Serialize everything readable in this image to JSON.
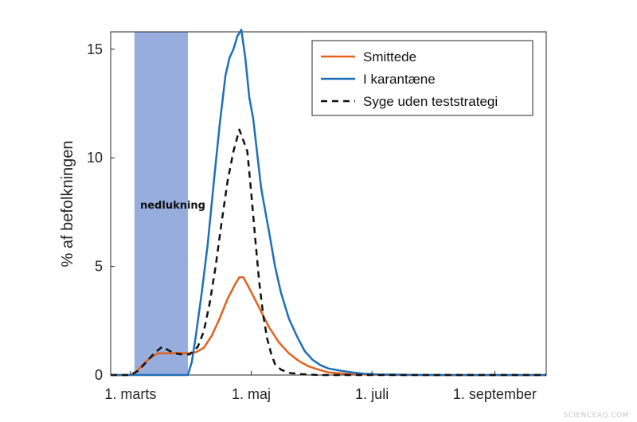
{
  "chart_data": {
    "type": "line",
    "ylabel": "% af befolkningen",
    "xlabel": "",
    "x_ticks": [
      "1. marts",
      "1. maj",
      "1. juli",
      "1. september"
    ],
    "x_tick_days": [
      0,
      61,
      122,
      184
    ],
    "y_ticks": [
      "0",
      "5",
      "10",
      "15"
    ],
    "y_tick_values": [
      0,
      5,
      10,
      15
    ],
    "xlim": [
      -10,
      210
    ],
    "ylim": [
      0,
      15.8
    ],
    "grid": false,
    "legend_position": "top-right",
    "shaded_region": {
      "label": "nedlukning",
      "x_range": [
        2,
        29
      ],
      "color": "#7f9bd6"
    },
    "series": [
      {
        "name": "Smittede",
        "color": "#e2621e",
        "style": "solid",
        "points": [
          [
            -10,
            0
          ],
          [
            0,
            0
          ],
          [
            3,
            0.15
          ],
          [
            6,
            0.45
          ],
          [
            10,
            0.8
          ],
          [
            14,
            1.0
          ],
          [
            20,
            1.0
          ],
          [
            25,
            1.02
          ],
          [
            29,
            1.0
          ],
          [
            33,
            1.05
          ],
          [
            37,
            1.25
          ],
          [
            41,
            1.8
          ],
          [
            45,
            2.6
          ],
          [
            49,
            3.5
          ],
          [
            53,
            4.2
          ],
          [
            55,
            4.5
          ],
          [
            57,
            4.5
          ],
          [
            60,
            4.0
          ],
          [
            65,
            3.1
          ],
          [
            70,
            2.2
          ],
          [
            75,
            1.5
          ],
          [
            80,
            1.0
          ],
          [
            85,
            0.65
          ],
          [
            90,
            0.4
          ],
          [
            95,
            0.25
          ],
          [
            100,
            0.12
          ],
          [
            110,
            0.05
          ],
          [
            120,
            0.02
          ],
          [
            140,
            0
          ],
          [
            210,
            0
          ]
        ]
      },
      {
        "name": "I karantæne",
        "color": "#1f6fb8",
        "style": "solid",
        "points": [
          [
            -10,
            0
          ],
          [
            29,
            0
          ],
          [
            31,
            0.6
          ],
          [
            33,
            1.8
          ],
          [
            36,
            3.8
          ],
          [
            39,
            6.0
          ],
          [
            42,
            8.8
          ],
          [
            45,
            11.5
          ],
          [
            48,
            13.8
          ],
          [
            50,
            14.6
          ],
          [
            52,
            15.0
          ],
          [
            54,
            15.6
          ],
          [
            56,
            15.9
          ],
          [
            58,
            14.6
          ],
          [
            60,
            12.8
          ],
          [
            62,
            11.8
          ],
          [
            64,
            10.2
          ],
          [
            66,
            8.6
          ],
          [
            68,
            7.6
          ],
          [
            70,
            6.6
          ],
          [
            73,
            5.0
          ],
          [
            76,
            3.8
          ],
          [
            80,
            2.6
          ],
          [
            84,
            1.8
          ],
          [
            88,
            1.1
          ],
          [
            92,
            0.7
          ],
          [
            96,
            0.45
          ],
          [
            100,
            0.3
          ],
          [
            106,
            0.2
          ],
          [
            112,
            0.12
          ],
          [
            118,
            0.06
          ],
          [
            125,
            0.03
          ],
          [
            140,
            0.01
          ],
          [
            160,
            0
          ],
          [
            210,
            0
          ]
        ]
      },
      {
        "name": "Syge uden teststrategi",
        "color": "#111111",
        "style": "dashed",
        "points": [
          [
            -10,
            0
          ],
          [
            0,
            0
          ],
          [
            4,
            0.2
          ],
          [
            8,
            0.6
          ],
          [
            12,
            1.0
          ],
          [
            16,
            1.3
          ],
          [
            19,
            1.15
          ],
          [
            22,
            1.0
          ],
          [
            26,
            0.95
          ],
          [
            30,
            0.95
          ],
          [
            34,
            1.3
          ],
          [
            37,
            2.0
          ],
          [
            40,
            3.3
          ],
          [
            43,
            5.0
          ],
          [
            46,
            7.0
          ],
          [
            49,
            8.9
          ],
          [
            52,
            10.3
          ],
          [
            55,
            11.3
          ],
          [
            57,
            10.8
          ],
          [
            59,
            10.3
          ],
          [
            61,
            8.4
          ],
          [
            63,
            6.3
          ],
          [
            65,
            4.3
          ],
          [
            67,
            2.8
          ],
          [
            69,
            1.7
          ],
          [
            71,
            1.0
          ],
          [
            73,
            0.5
          ],
          [
            76,
            0.25
          ],
          [
            80,
            0.1
          ],
          [
            86,
            0.04
          ],
          [
            95,
            0
          ],
          [
            210,
            0
          ]
        ]
      }
    ]
  },
  "legend": {
    "items": [
      {
        "label": "Smittede",
        "color": "#e2621e",
        "dashed": false
      },
      {
        "label": "I karantæne",
        "color": "#1f6fb8",
        "dashed": false
      },
      {
        "label": "Syge uden teststrategi",
        "color": "#111111",
        "dashed": true
      }
    ]
  },
  "annotation": {
    "text": "nedlukning"
  },
  "watermark": {
    "text": "SCIENCEAQ.COM"
  }
}
